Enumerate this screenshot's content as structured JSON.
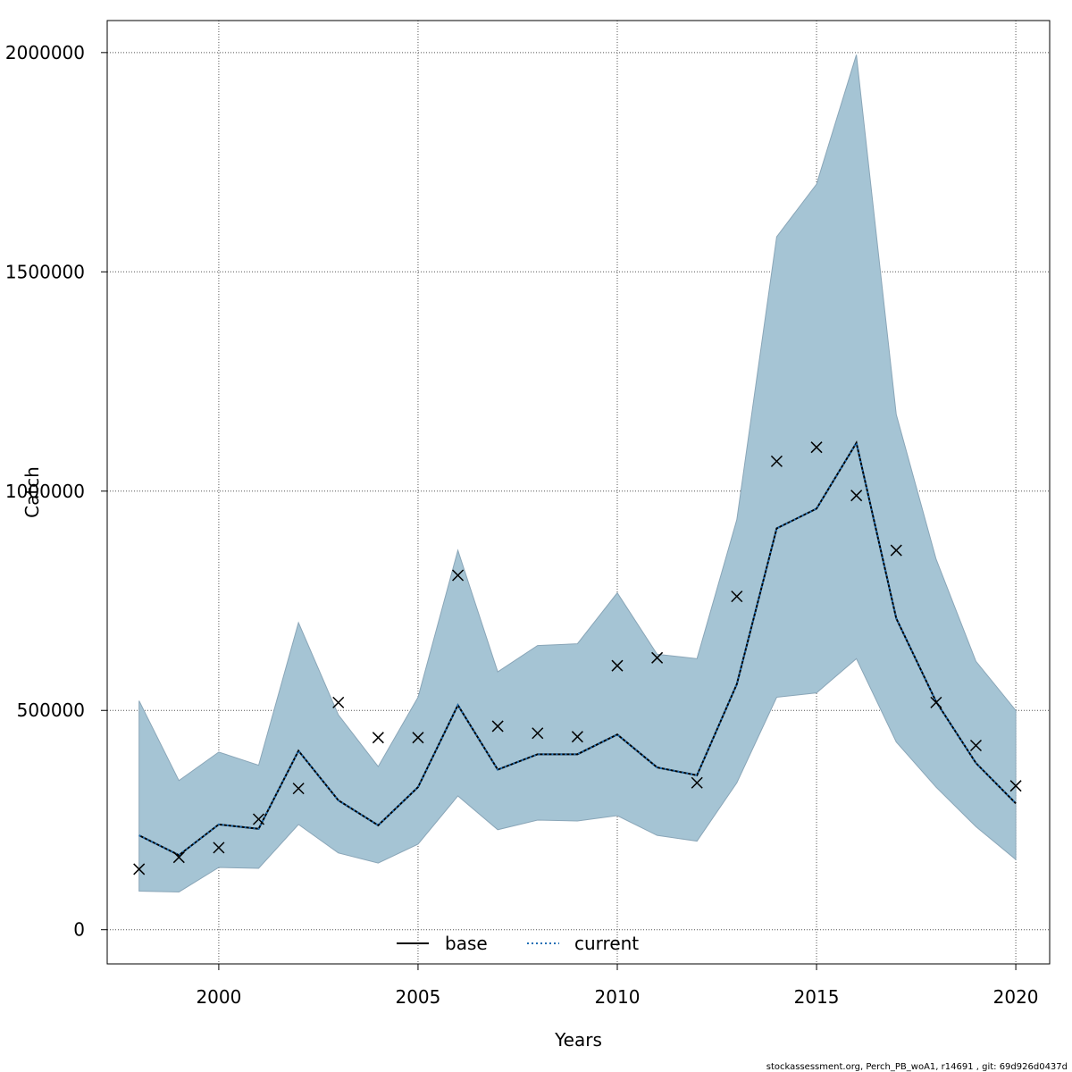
{
  "chart_data": {
    "type": "line",
    "xlabel": "Years",
    "ylabel": "Catch",
    "xlim": [
      1997.2,
      2020.85
    ],
    "ylim": [
      -78000,
      2073000
    ],
    "x_ticks": [
      2000,
      2005,
      2010,
      2015,
      2020
    ],
    "x_tick_labels": [
      "2000",
      "2005",
      "2010",
      "2015",
      "2020"
    ],
    "y_ticks": [
      0,
      500000,
      1000000,
      1500000,
      2000000
    ],
    "y_tick_labels": [
      "0",
      "500000",
      "1000000",
      "1500000",
      "2000000"
    ],
    "grid": true,
    "legend_position": "bottom",
    "x": [
      1998,
      1999,
      2000,
      2001,
      2002,
      2003,
      2004,
      2005,
      2006,
      2007,
      2008,
      2009,
      2010,
      2011,
      2012,
      2013,
      2014,
      2015,
      2016,
      2017,
      2018,
      2019,
      2020
    ],
    "band": {
      "upper": [
        522000,
        340000,
        405000,
        375000,
        700000,
        490000,
        372000,
        530000,
        865000,
        588000,
        648000,
        652000,
        768000,
        628000,
        618000,
        935000,
        1580000,
        1700000,
        1995000,
        1175000,
        845000,
        612000,
        500000
      ],
      "lower": [
        88000,
        86000,
        142000,
        140000,
        240000,
        175000,
        152000,
        195000,
        305000,
        228000,
        250000,
        248000,
        260000,
        215000,
        202000,
        335000,
        530000,
        540000,
        618000,
        428000,
        325000,
        235000,
        160000
      ],
      "color": "#a5c4d4",
      "edge_color": "#8aa6b8"
    },
    "series": [
      {
        "name": "base",
        "style": "solid",
        "color": "#000000",
        "values": [
          215000,
          170000,
          240000,
          230000,
          408000,
          295000,
          238000,
          325000,
          512000,
          365000,
          400000,
          400000,
          445000,
          370000,
          352000,
          560000,
          915000,
          960000,
          1110000,
          710000,
          520000,
          380000,
          288000
        ]
      },
      {
        "name": "current",
        "style": "dotted",
        "color": "#1f6fb5",
        "values": [
          215000,
          170000,
          240000,
          230000,
          408000,
          295000,
          238000,
          325000,
          512000,
          365000,
          400000,
          400000,
          445000,
          370000,
          352000,
          560000,
          915000,
          960000,
          1110000,
          710000,
          520000,
          380000,
          288000
        ]
      }
    ],
    "observations": {
      "marker": "x",
      "values": [
        138000,
        165000,
        187000,
        252000,
        322000,
        518000,
        438000,
        438000,
        808000,
        464000,
        448000,
        440000,
        602000,
        620000,
        335000,
        760000,
        1068000,
        1100000,
        990000,
        865000,
        518000,
        420000,
        328000
      ]
    },
    "footer": "stockassessment.org, Perch_PB_woA1, r14691 , git: 69d926d0437d"
  }
}
